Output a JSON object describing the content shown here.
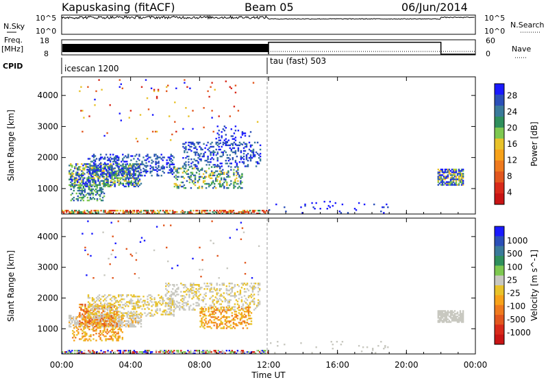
{
  "header": {
    "station": "Kapuskasing (fitACF)",
    "beam": "Beam 05",
    "date": "06/Jun/2014"
  },
  "labels": {
    "nsky": "N.Sky",
    "nsearch": "N.Search",
    "freq_line1": "Freq.",
    "freq_line2": "[MHz]",
    "nave": "Nave",
    "cpid": "CPID",
    "noise_tick_top_left": "10^5",
    "noise_tick_bottom_left": "10^0",
    "noise_tick_top_right": "10^5",
    "noise_tick_bottom_right": "10^0",
    "freq_tick_top": "18",
    "freq_tick_bottom": "8",
    "nave_tick_top": "60",
    "nave_tick_bottom": "0",
    "cpid_first": "icescan 1200",
    "cpid_second": "tau (fast) 503",
    "xlabel": "Time UT",
    "ylabel_power": "Slant Range [km]",
    "ylabel_velocity": "Slant Range [km]"
  },
  "chart_data": [
    {
      "type": "heatmap",
      "title": "Power",
      "xlabel": "Time UT",
      "ylabel": "Slant Range [km]",
      "xlim_hours": [
        0,
        24
      ],
      "ylim": [
        180,
        4600
      ],
      "x_ticks": [
        "00:00",
        "04:00",
        "08:00",
        "12:00",
        "16:00",
        "20:00",
        "00:00"
      ],
      "y_ticks": [
        1000,
        2000,
        3000,
        4000
      ],
      "colorbar": {
        "label": "Power [dB]",
        "ticks": [
          4,
          8,
          12,
          16,
          20,
          24,
          28
        ],
        "colors": [
          "#1a1aff",
          "#2b4fb8",
          "#3a7a9a",
          "#2f8f5c",
          "#7ec850",
          "#e8c22a",
          "#f7a21a",
          "#ef7a1e",
          "#e2571e",
          "#d82a1a",
          "#c81414"
        ]
      },
      "regions": [
        {
          "t0": 0.4,
          "t1": 4.6,
          "r0": 1050,
          "r1": 1800,
          "p": 0.55,
          "c": [
            0,
            1,
            2,
            4,
            5,
            3
          ]
        },
        {
          "t0": 0.5,
          "t1": 2.5,
          "r0": 600,
          "r1": 1100,
          "p": 0.35,
          "c": [
            1,
            2,
            3,
            4
          ]
        },
        {
          "t0": 1.5,
          "t1": 6.5,
          "r0": 1400,
          "r1": 2100,
          "p": 0.3,
          "c": [
            0,
            1,
            2
          ]
        },
        {
          "t0": 6.5,
          "t1": 10.5,
          "r0": 1000,
          "r1": 1700,
          "p": 0.28,
          "c": [
            1,
            2,
            3,
            4,
            5
          ]
        },
        {
          "t0": 7.0,
          "t1": 11.5,
          "r0": 1700,
          "r1": 2500,
          "p": 0.25,
          "c": [
            0,
            1,
            2
          ]
        },
        {
          "t0": 9.0,
          "t1": 11.0,
          "r0": 2400,
          "r1": 3000,
          "p": 0.12,
          "c": [
            0,
            1
          ]
        },
        {
          "t0": 21.8,
          "t1": 23.3,
          "r0": 1100,
          "r1": 1600,
          "p": 0.7,
          "c": [
            0,
            1,
            2,
            4,
            5
          ]
        },
        {
          "t0": 12.0,
          "t1": 19.0,
          "r0": 200,
          "r1": 600,
          "p": 0.04,
          "c": [
            0,
            1
          ]
        },
        {
          "t0": 0.0,
          "t1": 12.0,
          "r0": 180,
          "r1": 290,
          "p": 0.55,
          "c": [
            3,
            5,
            8,
            9
          ]
        },
        {
          "t0": 1.0,
          "t1": 11.5,
          "r0": 2500,
          "r1": 4500,
          "p": 0.012,
          "c": [
            0,
            5,
            8,
            9
          ]
        }
      ]
    },
    {
      "type": "heatmap",
      "title": "Velocity",
      "xlabel": "Time UT",
      "ylabel": "Slant Range [km]",
      "xlim_hours": [
        0,
        24
      ],
      "ylim": [
        180,
        4600
      ],
      "x_ticks": [
        "00:00",
        "04:00",
        "08:00",
        "12:00",
        "16:00",
        "20:00",
        "00:00"
      ],
      "y_ticks": [
        1000,
        2000,
        3000,
        4000
      ],
      "colorbar": {
        "label": "Velocity [m s^-1]",
        "ticks": [
          1000,
          500,
          100,
          25,
          -25,
          -100,
          -500,
          -1000
        ],
        "colors": [
          "#1a1aff",
          "#2b4fb8",
          "#3a7a9a",
          "#2f8f5c",
          "#7ec850",
          "#c8c8c0",
          "#e8c22a",
          "#f7a21a",
          "#ef7a1e",
          "#e2571e",
          "#d82a1a",
          "#c81414"
        ]
      },
      "regions": [
        {
          "t0": 0.4,
          "t1": 4.6,
          "r0": 1050,
          "r1": 1450,
          "p": 0.6,
          "c": [
            5,
            5,
            5,
            7
          ]
        },
        {
          "t0": 1.0,
          "t1": 3.2,
          "r0": 1050,
          "r1": 1800,
          "p": 0.45,
          "c": [
            8,
            9,
            7,
            6
          ]
        },
        {
          "t0": 0.6,
          "t1": 3.5,
          "r0": 600,
          "r1": 1050,
          "p": 0.35,
          "c": [
            6,
            7,
            8
          ]
        },
        {
          "t0": 1.5,
          "t1": 6.5,
          "r0": 1400,
          "r1": 2100,
          "p": 0.3,
          "c": [
            5,
            6
          ]
        },
        {
          "t0": 6.0,
          "t1": 11.5,
          "r0": 1600,
          "r1": 2500,
          "p": 0.3,
          "c": [
            5,
            5,
            6
          ]
        },
        {
          "t0": 8.0,
          "t1": 11.0,
          "r0": 1000,
          "r1": 1700,
          "p": 0.35,
          "c": [
            7,
            8,
            6
          ]
        },
        {
          "t0": 21.8,
          "t1": 23.3,
          "r0": 1200,
          "r1": 1600,
          "p": 0.8,
          "c": [
            5
          ]
        },
        {
          "t0": 12.0,
          "t1": 19.0,
          "r0": 200,
          "r1": 600,
          "p": 0.03,
          "c": [
            5
          ]
        },
        {
          "t0": 0.0,
          "t1": 12.0,
          "r0": 180,
          "r1": 290,
          "p": 0.5,
          "c": [
            0,
            4,
            10,
            5
          ]
        },
        {
          "t0": 1.0,
          "t1": 11.5,
          "r0": 2500,
          "r1": 4500,
          "p": 0.012,
          "c": [
            0,
            5,
            9
          ]
        }
      ]
    }
  ],
  "noise": {
    "sky_level_before": 0.88,
    "sky_level_after": 0.8,
    "sky_level_late": 0.88,
    "switch_hour": 12.0,
    "late_hour": 22.0
  },
  "freq_nave": {
    "freq_dense_until_hour": 12.0,
    "nave_before": 0,
    "nave_after": 55,
    "nave_switch_down_hour": 22.0
  }
}
